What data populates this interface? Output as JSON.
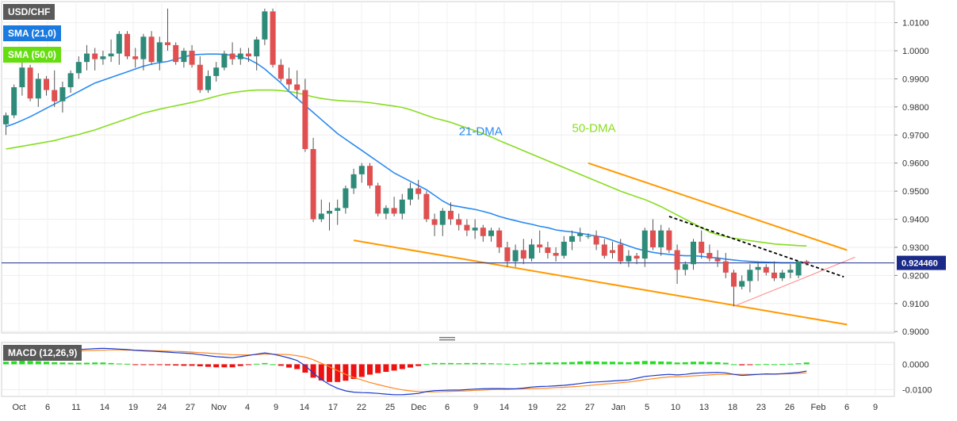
{
  "chart_data": [
    {
      "type": "candlestick",
      "symbol": "USD/CHF",
      "legend": [
        "USD/CHF",
        "SMA (21,0)",
        "SMA (50,0)"
      ],
      "price_label": "0.924460",
      "ylim": [
        0.8995,
        1.0175
      ],
      "ytick_values": [
        0.9,
        0.91,
        0.92,
        0.93,
        0.94,
        0.95,
        0.96,
        0.97,
        0.98,
        0.99,
        1.0,
        1.01
      ],
      "ytick_labels": [
        "0.9000",
        "0.9100",
        "0.9200",
        "0.9300",
        "0.9400",
        "0.9500",
        "0.9600",
        "0.9700",
        "0.9800",
        "0.9900",
        "1.0000",
        "1.0100"
      ],
      "xtick_labels": [
        "Oct",
        "6",
        "11",
        "14",
        "19",
        "24",
        "27",
        "Nov",
        "4",
        "9",
        "14",
        "17",
        "22",
        "25",
        "Dec",
        "6",
        "9",
        "14",
        "19",
        "22",
        "27",
        "Jan",
        "5",
        "10",
        "13",
        "18",
        "23",
        "26",
        "Feb",
        "6",
        "9"
      ],
      "candles": [
        [
          0.9738,
          0.978,
          0.97,
          0.977
        ],
        [
          0.977,
          0.988,
          0.976,
          0.987
        ],
        [
          0.987,
          0.996,
          0.984,
          0.994
        ],
        [
          0.994,
          0.995,
          0.982,
          0.983
        ],
        [
          0.983,
          0.992,
          0.98,
          0.99
        ],
        [
          0.99,
          0.991,
          0.984,
          0.986
        ],
        [
          0.986,
          0.993,
          0.98,
          0.982
        ],
        [
          0.982,
          0.989,
          0.978,
          0.987
        ],
        [
          0.987,
          0.993,
          0.985,
          0.992
        ],
        [
          0.992,
          0.998,
          0.99,
          0.996
        ],
        [
          0.996,
          1.002,
          0.993,
          0.999
        ],
        [
          0.999,
          1.001,
          0.993,
          0.997
        ],
        [
          0.997,
          1.0,
          0.995,
          0.998
        ],
        [
          0.998,
          1.004,
          0.996,
          0.999
        ],
        [
          0.999,
          1.007,
          0.995,
          1.006
        ],
        [
          1.006,
          1.007,
          0.997,
          0.998
        ],
        [
          0.998,
          1.001,
          0.994,
          0.997
        ],
        [
          0.997,
          1.006,
          0.993,
          1.005
        ],
        [
          1.005,
          1.007,
          0.995,
          0.996
        ],
        [
          0.996,
          1.005,
          0.993,
          1.003
        ],
        [
          1.003,
          1.015,
          1.0,
          1.002
        ],
        [
          1.002,
          1.003,
          0.995,
          0.996
        ],
        [
          0.996,
          1.001,
          0.994,
          1.0
        ],
        [
          1.0,
          1.002,
          0.994,
          0.995
        ],
        [
          0.995,
          0.998,
          0.985,
          0.986
        ],
        [
          0.986,
          0.993,
          0.985,
          0.991
        ],
        [
          0.991,
          0.996,
          0.989,
          0.994
        ],
        [
          0.994,
          1.0,
          0.993,
          0.999
        ],
        [
          0.999,
          1.003,
          0.995,
          0.997
        ],
        [
          0.997,
          1.001,
          0.995,
          0.999
        ],
        [
          0.999,
          1.001,
          0.996,
          0.998
        ],
        [
          0.998,
          1.005,
          0.993,
          1.004
        ],
        [
          1.004,
          1.015,
          1.002,
          1.014
        ],
        [
          1.014,
          1.015,
          0.994,
          0.995
        ],
        [
          0.995,
          0.997,
          0.989,
          0.99
        ],
        [
          0.99,
          0.994,
          0.986,
          0.988
        ],
        [
          0.988,
          0.993,
          0.983,
          0.986
        ],
        [
          0.986,
          0.99,
          0.964,
          0.965
        ],
        [
          0.965,
          0.969,
          0.939,
          0.94
        ],
        [
          0.94,
          0.947,
          0.939,
          0.942
        ],
        [
          0.942,
          0.946,
          0.936,
          0.943
        ],
        [
          0.943,
          0.947,
          0.938,
          0.944
        ],
        [
          0.944,
          0.952,
          0.942,
          0.951
        ],
        [
          0.951,
          0.958,
          0.949,
          0.956
        ],
        [
          0.956,
          0.96,
          0.953,
          0.959
        ],
        [
          0.959,
          0.96,
          0.951,
          0.952
        ],
        [
          0.952,
          0.953,
          0.941,
          0.942
        ],
        [
          0.942,
          0.945,
          0.94,
          0.944
        ],
        [
          0.944,
          0.948,
          0.941,
          0.942
        ],
        [
          0.942,
          0.949,
          0.94,
          0.947
        ],
        [
          0.947,
          0.953,
          0.945,
          0.951
        ],
        [
          0.951,
          0.954,
          0.947,
          0.949
        ],
        [
          0.949,
          0.95,
          0.939,
          0.94
        ],
        [
          0.94,
          0.942,
          0.934,
          0.938
        ],
        [
          0.938,
          0.944,
          0.934,
          0.943
        ],
        [
          0.943,
          0.946,
          0.938,
          0.94
        ],
        [
          0.94,
          0.942,
          0.936,
          0.938
        ],
        [
          0.938,
          0.94,
          0.934,
          0.936
        ],
        [
          0.936,
          0.94,
          0.933,
          0.937
        ],
        [
          0.937,
          0.938,
          0.932,
          0.934
        ],
        [
          0.934,
          0.937,
          0.932,
          0.936
        ],
        [
          0.936,
          0.937,
          0.928,
          0.93
        ],
        [
          0.93,
          0.932,
          0.923,
          0.925
        ],
        [
          0.925,
          0.931,
          0.923,
          0.929
        ],
        [
          0.929,
          0.933,
          0.924,
          0.926
        ],
        [
          0.926,
          0.933,
          0.925,
          0.931
        ],
        [
          0.931,
          0.936,
          0.928,
          0.93
        ],
        [
          0.93,
          0.932,
          0.926,
          0.928
        ],
        [
          0.928,
          0.93,
          0.925,
          0.927
        ],
        [
          0.927,
          0.934,
          0.926,
          0.932
        ],
        [
          0.932,
          0.936,
          0.929,
          0.934
        ],
        [
          0.934,
          0.937,
          0.932,
          0.935
        ],
        [
          0.934,
          0.935,
          0.933,
          0.934
        ],
        [
          0.934,
          0.936,
          0.929,
          0.931
        ],
        [
          0.931,
          0.933,
          0.926,
          0.927
        ],
        [
          0.929,
          0.932,
          0.926,
          0.928
        ],
        [
          0.931,
          0.933,
          0.924,
          0.925
        ],
        [
          0.925,
          0.929,
          0.923,
          0.927
        ],
        [
          0.927,
          0.928,
          0.924,
          0.926
        ],
        [
          0.926,
          0.937,
          0.923,
          0.936
        ],
        [
          0.936,
          0.94,
          0.929,
          0.93
        ],
        [
          0.93,
          0.938,
          0.927,
          0.936
        ],
        [
          0.936,
          0.937,
          0.928,
          0.929
        ],
        [
          0.929,
          0.931,
          0.917,
          0.922
        ],
        [
          0.922,
          0.925,
          0.92,
          0.924
        ],
        [
          0.924,
          0.933,
          0.922,
          0.932
        ],
        [
          0.932,
          0.936,
          0.926,
          0.928
        ],
        [
          0.928,
          0.931,
          0.925,
          0.926
        ],
        [
          0.926,
          0.929,
          0.923,
          0.925
        ],
        [
          0.925,
          0.928,
          0.919,
          0.921
        ],
        [
          0.921,
          0.922,
          0.909,
          0.916
        ],
        [
          0.916,
          0.92,
          0.915,
          0.918
        ],
        [
          0.918,
          0.924,
          0.914,
          0.922
        ],
        [
          0.922,
          0.925,
          0.918,
          0.923
        ],
        [
          0.923,
          0.924,
          0.92,
          0.921
        ],
        [
          0.921,
          0.925,
          0.918,
          0.919
        ],
        [
          0.919,
          0.922,
          0.918,
          0.921
        ],
        [
          0.921,
          0.924,
          0.919,
          0.922
        ],
        [
          0.92,
          0.925,
          0.919,
          0.925
        ],
        [
          0.925,
          0.9255,
          0.9235,
          0.9245
        ]
      ],
      "sma21": [
        0.973,
        0.974,
        0.9752,
        0.9765,
        0.978,
        0.9795,
        0.981,
        0.9825,
        0.984,
        0.9855,
        0.987,
        0.9885,
        0.9895,
        0.9905,
        0.9915,
        0.9925,
        0.9935,
        0.9945,
        0.9952,
        0.9958,
        0.9962,
        0.997,
        0.9978,
        0.9985,
        0.9987,
        0.9988,
        0.9988,
        0.9987,
        0.9983,
        0.9978,
        0.997,
        0.9955,
        0.9935,
        0.991,
        0.9885,
        0.9855,
        0.983,
        0.9805,
        0.978,
        0.9755,
        0.973,
        0.9705,
        0.9685,
        0.9665,
        0.9645,
        0.9625,
        0.9605,
        0.9585,
        0.9565,
        0.955,
        0.9535,
        0.952,
        0.9505,
        0.9485,
        0.9465,
        0.945,
        0.9445,
        0.944,
        0.9435,
        0.9428,
        0.942,
        0.941,
        0.9402,
        0.9395,
        0.9388,
        0.9382,
        0.9375,
        0.937,
        0.9362,
        0.9358,
        0.9355,
        0.935,
        0.9345,
        0.934,
        0.9335,
        0.9325,
        0.9315,
        0.9305,
        0.9295,
        0.9288,
        0.9282,
        0.9278,
        0.9275,
        0.9272,
        0.927,
        0.927,
        0.9268,
        0.9265,
        0.9262,
        0.9258,
        0.9255,
        0.9252,
        0.925,
        0.9248,
        0.9247,
        0.9246,
        0.9245,
        0.9245,
        0.9245,
        0.9245
      ],
      "sma50": [
        0.965,
        0.9655,
        0.966,
        0.9665,
        0.967,
        0.9675,
        0.968,
        0.9688,
        0.9695,
        0.9702,
        0.971,
        0.9718,
        0.9728,
        0.9738,
        0.9748,
        0.9758,
        0.9768,
        0.9778,
        0.9785,
        0.9792,
        0.9798,
        0.9804,
        0.981,
        0.9816,
        0.9822,
        0.983,
        0.9838,
        0.9845,
        0.9851,
        0.9855,
        0.9858,
        0.986,
        0.986,
        0.986,
        0.9858,
        0.9855,
        0.985,
        0.9843,
        0.9836,
        0.983,
        0.9826,
        0.9823,
        0.9821,
        0.982,
        0.9818,
        0.9815,
        0.9811,
        0.9807,
        0.9803,
        0.9798,
        0.979,
        0.978,
        0.977,
        0.976,
        0.9753,
        0.9745,
        0.9735,
        0.9725,
        0.9715,
        0.9705,
        0.9693,
        0.968,
        0.9668,
        0.9656,
        0.9644,
        0.9632,
        0.962,
        0.9608,
        0.9596,
        0.9584,
        0.9572,
        0.956,
        0.9548,
        0.9536,
        0.9524,
        0.9512,
        0.95,
        0.949,
        0.948,
        0.947,
        0.9458,
        0.9445,
        0.943,
        0.9415,
        0.94,
        0.9385,
        0.937,
        0.9355,
        0.9345,
        0.9338,
        0.9332,
        0.9328,
        0.9324,
        0.932,
        0.9316,
        0.9312,
        0.931,
        0.9308,
        0.9306,
        0.9305
      ],
      "trendlines": [
        {
          "x1": 72,
          "y1": 0.96,
          "x2": 104,
          "y2": 0.929,
          "color": "#ff9900"
        },
        {
          "x1": 43,
          "y1": 0.9325,
          "x2": 104,
          "y2": 0.9025,
          "color": "#ff9900"
        },
        {
          "x1": 82,
          "y1": 0.941,
          "x2": 103.6,
          "y2": 0.9195,
          "color": "#000000",
          "dash": true
        },
        {
          "x1": 90,
          "y1": 0.909,
          "x2": 105,
          "y2": 0.9265,
          "color": "#ff8888",
          "thin": true
        }
      ],
      "annotations": [
        {
          "text": "21-DMA",
          "x": 56,
          "y": 0.97,
          "color": "#2a8af0"
        },
        {
          "text": "50-DMA",
          "x": 70,
          "y": 0.971,
          "color": "#88dd22"
        }
      ]
    },
    {
      "type": "macd",
      "label": "MACD (12,26,9)",
      "ylim": [
        -0.0127,
        0.0086
      ],
      "ytick_values": [
        0.0,
        -0.01
      ],
      "ytick_labels": [
        "0.0000",
        "-0.0100"
      ],
      "macd": [
        0.004,
        0.0045,
        0.005,
        0.0052,
        0.0054,
        0.0055,
        0.0055,
        0.0055,
        0.0056,
        0.0058,
        0.006,
        0.0062,
        0.0063,
        0.0062,
        0.006,
        0.0058,
        0.0055,
        0.0053,
        0.0052,
        0.005,
        0.0048,
        0.0046,
        0.0044,
        0.0042,
        0.0038,
        0.0034,
        0.003,
        0.0028,
        0.0026,
        0.003,
        0.0035,
        0.004,
        0.0045,
        0.004,
        0.0033,
        0.0025,
        0.0015,
        -0.0005,
        -0.0035,
        -0.006,
        -0.008,
        -0.0095,
        -0.0105,
        -0.011,
        -0.0112,
        -0.0113,
        -0.0115,
        -0.0118,
        -0.012,
        -0.012,
        -0.0118,
        -0.0115,
        -0.0108,
        -0.0104,
        -0.0103,
        -0.0102,
        -0.0102,
        -0.01,
        -0.0098,
        -0.0097,
        -0.0096,
        -0.0096,
        -0.0097,
        -0.0097,
        -0.0094,
        -0.009,
        -0.0088,
        -0.0087,
        -0.0085,
        -0.0083,
        -0.008,
        -0.0076,
        -0.0072,
        -0.007,
        -0.0068,
        -0.0066,
        -0.0064,
        -0.0062,
        -0.0055,
        -0.0048,
        -0.0045,
        -0.0042,
        -0.004,
        -0.0042,
        -0.004,
        -0.0036,
        -0.0034,
        -0.0033,
        -0.0032,
        -0.0034,
        -0.004,
        -0.0044,
        -0.0042,
        -0.004,
        -0.0038,
        -0.0039,
        -0.0037,
        -0.0035,
        -0.0032,
        -0.0027
      ],
      "signal": [
        0.003,
        0.0033,
        0.0036,
        0.0039,
        0.0042,
        0.0045,
        0.0047,
        0.0048,
        0.005,
        0.0052,
        0.0054,
        0.0055,
        0.0056,
        0.0057,
        0.0057,
        0.0056,
        0.0056,
        0.0055,
        0.0054,
        0.0053,
        0.0052,
        0.0051,
        0.005,
        0.0048,
        0.0046,
        0.0044,
        0.0042,
        0.004,
        0.0038,
        0.0037,
        0.0037,
        0.0038,
        0.004,
        0.004,
        0.0039,
        0.0038,
        0.0034,
        0.0028,
        0.0018,
        0.0004,
        -0.001,
        -0.0025,
        -0.004,
        -0.0052,
        -0.0062,
        -0.0072,
        -0.008,
        -0.0088,
        -0.0095,
        -0.0101,
        -0.0105,
        -0.0108,
        -0.0109,
        -0.0109,
        -0.0108,
        -0.0107,
        -0.0106,
        -0.0105,
        -0.0103,
        -0.0102,
        -0.01,
        -0.0099,
        -0.0099,
        -0.0098,
        -0.0097,
        -0.0096,
        -0.0095,
        -0.0094,
        -0.0092,
        -0.0091,
        -0.0089,
        -0.0087,
        -0.0084,
        -0.0081,
        -0.0078,
        -0.0076,
        -0.0073,
        -0.007,
        -0.0066,
        -0.0061,
        -0.0057,
        -0.0053,
        -0.005,
        -0.0049,
        -0.0048,
        -0.0046,
        -0.0044,
        -0.0042,
        -0.004,
        -0.004,
        -0.004,
        -0.004,
        -0.004,
        -0.004,
        -0.0039,
        -0.0039,
        -0.0038,
        -0.0037,
        -0.0036,
        -0.0034
      ]
    }
  ],
  "colors": {
    "up": "#2e8b7a",
    "down": "#e05050",
    "wick": "#555555",
    "sma21": "#2a8af0",
    "sma50": "#88dd22",
    "hist_pos": "#22dd22",
    "hist_neg": "#ee1111",
    "macd_line": "#1a3acc",
    "signal_line": "#ff8822",
    "price_line": "#1a2a88",
    "legend_dark": "#5a5a5a",
    "legend_sma21": "#1a7ae0",
    "legend_sma50": "#66dd11"
  }
}
